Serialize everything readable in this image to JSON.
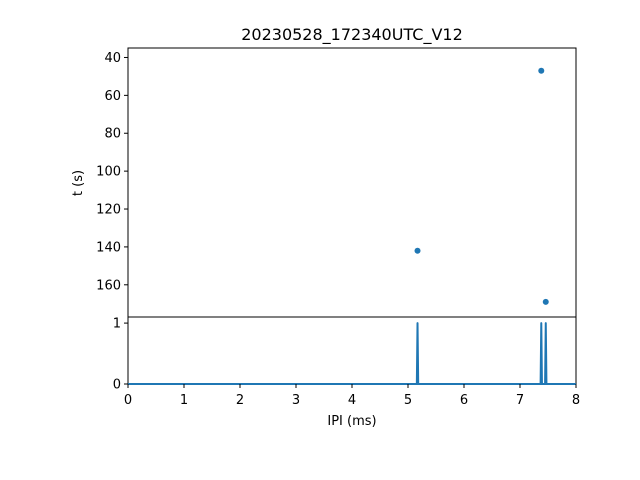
{
  "chart_data": [
    {
      "type": "scatter",
      "title": "20230528_172340UTC_V12",
      "xlabel": "",
      "ylabel": "t (s)",
      "xlim": [
        0,
        8
      ],
      "ylim": [
        177,
        35
      ],
      "y_inverted": true,
      "yticks": [
        40,
        60,
        80,
        100,
        120,
        140,
        160
      ],
      "grid": false,
      "color": "#1f77b4",
      "points": [
        {
          "x": 7.38,
          "y": 47
        },
        {
          "x": 5.17,
          "y": 142
        },
        {
          "x": 7.46,
          "y": 169
        }
      ]
    },
    {
      "type": "line",
      "xlabel": "IPI (ms)",
      "ylabel": "",
      "xlim": [
        0,
        8
      ],
      "ylim": [
        0,
        1.1
      ],
      "xticks": [
        0,
        1,
        2,
        3,
        4,
        5,
        6,
        7,
        8
      ],
      "yticks": [
        0,
        1
      ],
      "grid": false,
      "color": "#1f77b4",
      "peaks": [
        {
          "x": 5.17,
          "y": 1
        },
        {
          "x": 7.38,
          "y": 1
        },
        {
          "x": 7.46,
          "y": 1
        }
      ]
    }
  ]
}
